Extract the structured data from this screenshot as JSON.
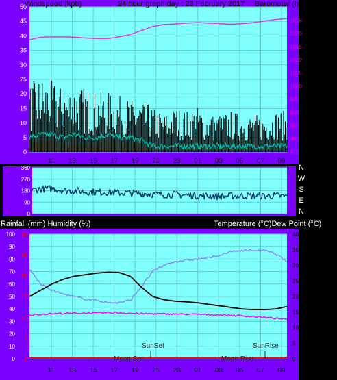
{
  "header": {
    "left_title": "Windspeed (kph)",
    "center_title": "24 hour graph day :  23 February 2017",
    "right_title": "Barometer (hpa)"
  },
  "colors": {
    "purple_bg": "#7a00ff",
    "plot_bg": "#80ffff",
    "grid": "#66cccc",
    "gust": "#000000",
    "avg_wind": "#00b4a0",
    "rain_rate": "#ff8c00",
    "barometer": "#e040e0",
    "direction": "#0d3d6e",
    "temperature": "#000000",
    "dewpoint": "#ff00ff",
    "humidity": "#8a8cf0",
    "rainfall": "#ff0000",
    "left_axis_text": "#ffffff",
    "right_axis_text_top": "#e000e0",
    "right_axis_text_bottom": "#000000"
  },
  "x_ticks": [
    "11",
    "13",
    "15",
    "17",
    "19",
    "21",
    "23",
    "01",
    "03",
    "05",
    "07",
    "09"
  ],
  "wind_panel": {
    "left_ticks": [
      "0",
      "5",
      "10",
      "15",
      "20",
      "25",
      "30",
      "35",
      "40",
      "45",
      "50"
    ],
    "right_ticks": [
      "975",
      "980",
      "985",
      "990",
      "995",
      "1000",
      "1005",
      "1010",
      "1015",
      "1020",
      "1025"
    ]
  },
  "direction_panel": {
    "left_ticks": [
      "0",
      "90",
      "180",
      "270",
      "360"
    ],
    "compass": [
      "N",
      "W",
      "S",
      "E",
      "N"
    ]
  },
  "lower_panel": {
    "left_label": "Rainfall (mm)  Humidity (%)",
    "right_label": "Temperature (°C)Dew Point (°C)",
    "left_ticks": [
      "0",
      "10",
      "20",
      "30",
      "40",
      "50",
      "60",
      "70",
      "80",
      "90",
      "100"
    ],
    "red_ticks": [
      "0",
      "5",
      "10",
      "15",
      "20",
      "25",
      "30"
    ],
    "right_ticks": [
      "0",
      "5",
      "10",
      "15",
      "20",
      "25",
      "30",
      "35",
      "40"
    ],
    "events": {
      "moon_set": "Moon Set",
      "sun_set": "SunSet",
      "moon_rise": "Moon Rise",
      "sun_rise": "SunRise"
    }
  },
  "chart_data": [
    {
      "type": "line",
      "title": "24 hour graph day :  23 February 2017",
      "ylabel": "Windspeed (kph)",
      "y2label": "Barometer (hpa)",
      "x": [
        "10",
        "11",
        "12",
        "13",
        "14",
        "15",
        "16",
        "17",
        "18",
        "19",
        "20",
        "21",
        "22",
        "23",
        "00",
        "01",
        "02",
        "03",
        "04",
        "05",
        "06",
        "07",
        "08",
        "09"
      ],
      "ylim": [
        0,
        50
      ],
      "y2lim": [
        975,
        1030
      ],
      "series": [
        {
          "values": [
            18,
            20,
            19,
            17,
            18,
            17,
            16,
            16,
            15,
            14,
            14,
            12,
            10,
            12,
            11,
            12,
            10,
            10,
            11,
            10,
            10,
            10,
            11,
            11
          ]
        },
        {
          "values": [
            5,
            6,
            6,
            5,
            6,
            5,
            5,
            6,
            5,
            5,
            4,
            2,
            2,
            2,
            2,
            2,
            2,
            2,
            2,
            2,
            2,
            2,
            2,
            2
          ]
        },
        {
          "values": [
            2,
            3,
            2,
            1,
            3,
            2,
            2,
            3,
            2,
            1,
            1,
            0,
            0,
            0,
            0,
            0,
            0,
            0,
            0,
            0,
            0,
            0,
            0,
            0
          ]
        },
        {
          "values": [
            1017.5,
            1018.5,
            1018.6,
            1018.6,
            1018.5,
            1018.2,
            1018,
            1018,
            1018.6,
            1019.5,
            1021,
            1022.5,
            1023.3,
            1023.5,
            1023.8,
            1024,
            1023.8,
            1023.6,
            1023.4,
            1023.6,
            1024,
            1024.6,
            1025.2,
            1025.6
          ]
        }
      ]
    },
    {
      "type": "line",
      "ylim": [
        0,
        360
      ],
      "x": [
        "10",
        "11",
        "12",
        "13",
        "14",
        "15",
        "16",
        "17",
        "18",
        "19",
        "20",
        "21",
        "22",
        "23",
        "00",
        "01",
        "02",
        "03",
        "04",
        "05",
        "06",
        "07",
        "08",
        "09"
      ],
      "series": [
        {
          "values": [
            185,
            195,
            195,
            180,
            180,
            170,
            168,
            168,
            162,
            162,
            158,
            152,
            148,
            150,
            145,
            140,
            140,
            135,
            140,
            140,
            140,
            138,
            140,
            135
          ]
        }
      ]
    },
    {
      "type": "line",
      "ylabel": "Rainfall (mm)  Humidity (%)",
      "y2label": "Temperature (°C)Dew Point (°C)",
      "x": [
        "10",
        "11",
        "12",
        "13",
        "14",
        "15",
        "16",
        "17",
        "18",
        "19",
        "20",
        "21",
        "22",
        "23",
        "00",
        "01",
        "02",
        "03",
        "04",
        "05",
        "06",
        "07",
        "08",
        "09"
      ],
      "ylim": [
        0,
        100
      ],
      "y2lim": [
        0,
        40
      ],
      "series": [
        {
          "values": [
            72,
            60,
            55,
            52,
            50,
            48,
            47,
            45,
            45,
            47,
            58,
            70,
            75,
            78,
            79,
            80,
            81,
            83,
            86,
            87,
            87,
            87,
            84,
            78
          ]
        },
        {
          "values": [
            20,
            22,
            24,
            25.5,
            26.5,
            27,
            27.5,
            27.8,
            27.7,
            26.5,
            23,
            20,
            19,
            18.5,
            18.3,
            18,
            17.5,
            17,
            16.5,
            16,
            15.8,
            15.8,
            16,
            16.8
          ]
        },
        {
          "values": [
            14,
            14.3,
            14.5,
            14.6,
            14.6,
            14.7,
            14.7,
            14.8,
            14.8,
            14.6,
            14.5,
            14.5,
            14.4,
            14.4,
            14.3,
            14.3,
            14.2,
            14.1,
            14,
            13.8,
            13.6,
            13.3,
            13.0,
            12.6
          ]
        },
        {
          "values": [
            0,
            0,
            0,
            0,
            0,
            0,
            0,
            0,
            0,
            0,
            0,
            0,
            0,
            0,
            0,
            0,
            0,
            0,
            0,
            0,
            0,
            0,
            0,
            0
          ]
        }
      ]
    }
  ]
}
